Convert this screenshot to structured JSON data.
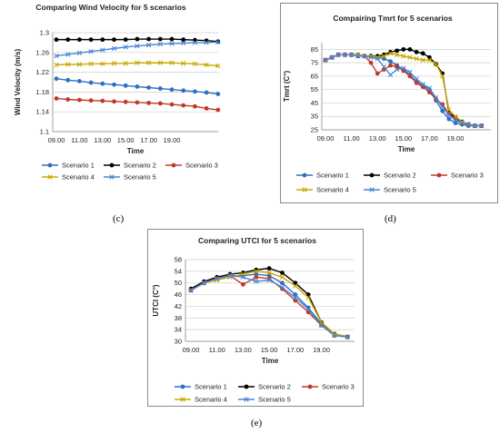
{
  "captions": [
    "(c)",
    "(d)",
    "(e)"
  ],
  "chart_data": [
    {
      "type": "line",
      "panel": "c",
      "title": "Comparing Wind Velocity for 5 scenarios",
      "xlabel": "Time",
      "ylabel": "Wind Velocity (m/s)",
      "ylim": [
        1.1,
        1.3
      ],
      "yticks": [
        "1.1",
        "1.14",
        "1.18",
        "1.22",
        "1.26",
        "1.3"
      ],
      "yticks_values": [
        1.1,
        1.14,
        1.18,
        1.22,
        1.26,
        1.3
      ],
      "xticks": [
        "09.00",
        "11.00",
        "13.00",
        "15.00",
        "17.00",
        "19.00"
      ],
      "x_count": 15,
      "grid": "horizontal",
      "legend_position": "bottom",
      "series": [
        {
          "name": "Scenario 1",
          "color": "#2e6fc4",
          "marker": "circle",
          "values": [
            1.207,
            1.204,
            1.202,
            1.199,
            1.197,
            1.195,
            1.193,
            1.191,
            1.189,
            1.187,
            1.185,
            1.183,
            1.181,
            1.179,
            1.176
          ]
        },
        {
          "name": "Scenario 2",
          "color": "#000000",
          "marker": "circle",
          "values": [
            1.286,
            1.286,
            1.286,
            1.286,
            1.286,
            1.286,
            1.286,
            1.287,
            1.287,
            1.287,
            1.287,
            1.286,
            1.285,
            1.284,
            1.282
          ]
        },
        {
          "name": "Scenario 3",
          "color": "#c0392b",
          "marker": "circle",
          "values": [
            1.167,
            1.165,
            1.164,
            1.163,
            1.162,
            1.161,
            1.16,
            1.159,
            1.158,
            1.157,
            1.155,
            1.153,
            1.151,
            1.147,
            1.144
          ]
        },
        {
          "name": "Scenario 4",
          "color": "#c8a800",
          "marker": "x",
          "values": [
            1.235,
            1.236,
            1.236,
            1.237,
            1.237,
            1.238,
            1.238,
            1.239,
            1.239,
            1.239,
            1.239,
            1.238,
            1.237,
            1.235,
            1.233
          ]
        },
        {
          "name": "Scenario 5",
          "color": "#4a86d6",
          "marker": "x",
          "values": [
            1.253,
            1.256,
            1.259,
            1.262,
            1.265,
            1.268,
            1.271,
            1.273,
            1.275,
            1.277,
            1.278,
            1.279,
            1.28,
            1.28,
            1.281
          ]
        }
      ]
    },
    {
      "type": "line",
      "panel": "d",
      "title": "Compairing Tmrt for 5 scenarios",
      "xlabel": "Time",
      "ylabel": "Tmrt (C°)",
      "ylim": [
        25,
        90
      ],
      "yticks": [
        "25",
        "35",
        "45",
        "55",
        "65",
        "75",
        "85"
      ],
      "yticks_values": [
        25,
        35,
        45,
        55,
        65,
        75,
        85
      ],
      "xticks": [
        "09.00",
        "11.00",
        "13.00",
        "15.00",
        "17.00",
        "19.00"
      ],
      "x_count": 25,
      "grid": "horizontal",
      "legend_position": "bottom",
      "series": [
        {
          "name": "Scenario 1",
          "color": "#2e6fc4",
          "marker": "circle",
          "values": [
            77,
            79,
            81,
            81,
            81,
            80,
            80,
            80,
            79,
            78,
            76,
            73,
            70,
            66,
            61,
            58,
            55,
            47,
            39,
            33,
            30,
            29,
            28,
            28,
            28
          ]
        },
        {
          "name": "Scenario 2",
          "color": "#000000",
          "marker": "circle",
          "values": [
            77,
            79,
            81,
            81,
            81,
            81,
            80,
            80,
            80,
            81,
            83,
            84,
            85,
            85,
            83,
            82,
            79,
            74,
            67,
            38,
            34,
            31,
            29,
            28,
            28
          ]
        },
        {
          "name": "Scenario 3",
          "color": "#c0392b",
          "marker": "circle",
          "values": [
            77,
            79,
            81,
            81,
            81,
            81,
            80,
            75,
            67,
            70,
            73,
            72,
            69,
            65,
            60,
            57,
            53,
            48,
            44,
            37,
            33,
            30,
            29,
            28,
            28
          ]
        },
        {
          "name": "Scenario 4",
          "color": "#c8a800",
          "marker": "x",
          "values": [
            77,
            79,
            81,
            81,
            81,
            81,
            80,
            80,
            79,
            80,
            82,
            81,
            80,
            79,
            78,
            77,
            77,
            74,
            65,
            40,
            35,
            31,
            29,
            28,
            28
          ]
        },
        {
          "name": "Scenario 5",
          "color": "#4a86d6",
          "marker": "x",
          "values": [
            77,
            79,
            81,
            81,
            81,
            80,
            80,
            79,
            78,
            72,
            66,
            70,
            71,
            68,
            63,
            59,
            56,
            49,
            42,
            36,
            32,
            30,
            29,
            28,
            28
          ]
        }
      ]
    },
    {
      "type": "line",
      "panel": "e",
      "title": "Comparing UTCI for 5 scenarios",
      "xlabel": "Time",
      "ylabel": "UTCI (C°)",
      "ylim": [
        30,
        58
      ],
      "yticks": [
        "30",
        "34",
        "38",
        "42",
        "46",
        "50",
        "54",
        "58"
      ],
      "yticks_values": [
        30,
        34,
        38,
        42,
        46,
        50,
        54,
        58
      ],
      "xticks": [
        "09.00",
        "11.00",
        "13.00",
        "15.00",
        "17.00",
        "19.00"
      ],
      "x_count": 13,
      "grid": "horizontal",
      "legend_position": "bottom",
      "series": [
        {
          "name": "Scenario 1",
          "color": "#2e6fc4",
          "marker": "circle",
          "values": [
            47.5,
            50,
            51.5,
            52.5,
            52.5,
            53,
            52.5,
            50,
            46,
            41.5,
            36,
            32.5,
            31.5
          ]
        },
        {
          "name": "Scenario 2",
          "color": "#000000",
          "marker": "circle",
          "values": [
            48,
            50.5,
            52,
            53,
            53.5,
            54.5,
            55,
            53.5,
            50,
            46,
            36.5,
            32.5,
            31.5
          ]
        },
        {
          "name": "Scenario 3",
          "color": "#c0392b",
          "marker": "circle",
          "values": [
            47.5,
            50,
            51.5,
            52.5,
            49.5,
            52,
            51.5,
            48,
            44,
            40,
            35.5,
            32,
            31.5
          ]
        },
        {
          "name": "Scenario 4",
          "color": "#c8a800",
          "marker": "x",
          "values": [
            47.5,
            50,
            51,
            52,
            53,
            54,
            53.5,
            52,
            49,
            45,
            36.5,
            32.5,
            31.5
          ]
        },
        {
          "name": "Scenario 5",
          "color": "#4a86d6",
          "marker": "x",
          "values": [
            47.5,
            50,
            51.5,
            52.5,
            52,
            50.5,
            51,
            48.5,
            45,
            41,
            35.5,
            32,
            31.5
          ]
        }
      ]
    }
  ]
}
